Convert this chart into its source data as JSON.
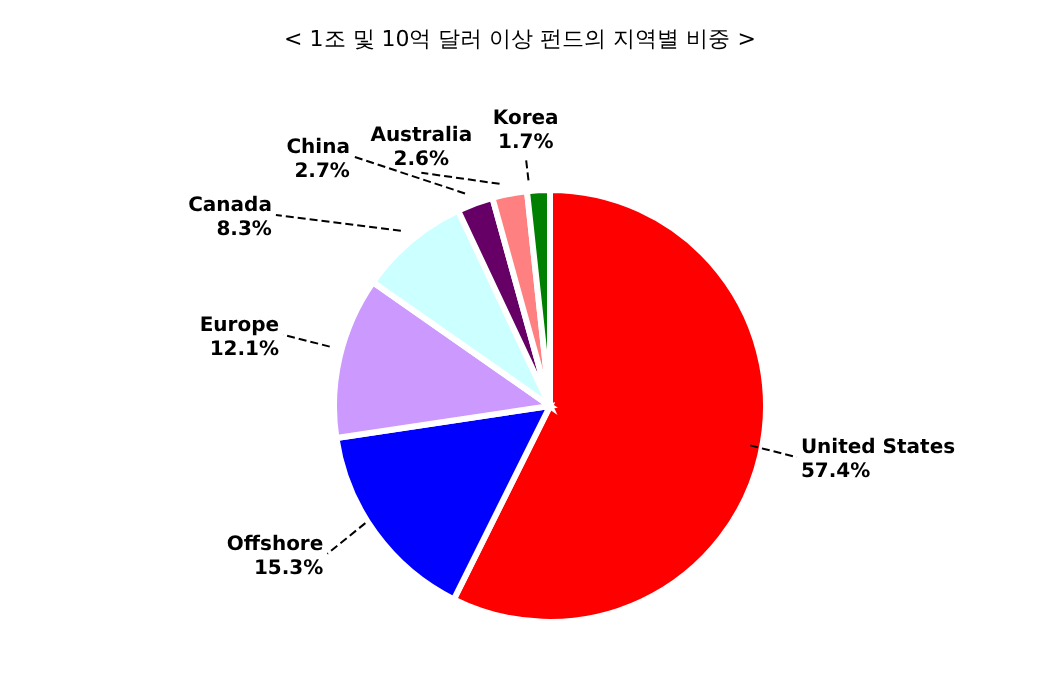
{
  "chart_data": {
    "type": "pie",
    "title": "< 1조 및 10억 달러 이상 펀드의 지역별 비중 >",
    "categories": [
      "United States",
      "Offshore",
      "Europe",
      "Canada",
      "China",
      "Australia",
      "Korea"
    ],
    "values": [
      57.4,
      15.3,
      12.1,
      8.3,
      2.7,
      2.6,
      1.7
    ],
    "value_labels": [
      "57.4%",
      "15.3%",
      "12.1%",
      "8.3%",
      "2.7%",
      "2.6%",
      "1.7%"
    ],
    "colors": [
      "#ff0000",
      "#0000ff",
      "#cc99ff",
      "#ccffff",
      "#660066",
      "#ff8080",
      "#008000"
    ],
    "legend": false
  }
}
